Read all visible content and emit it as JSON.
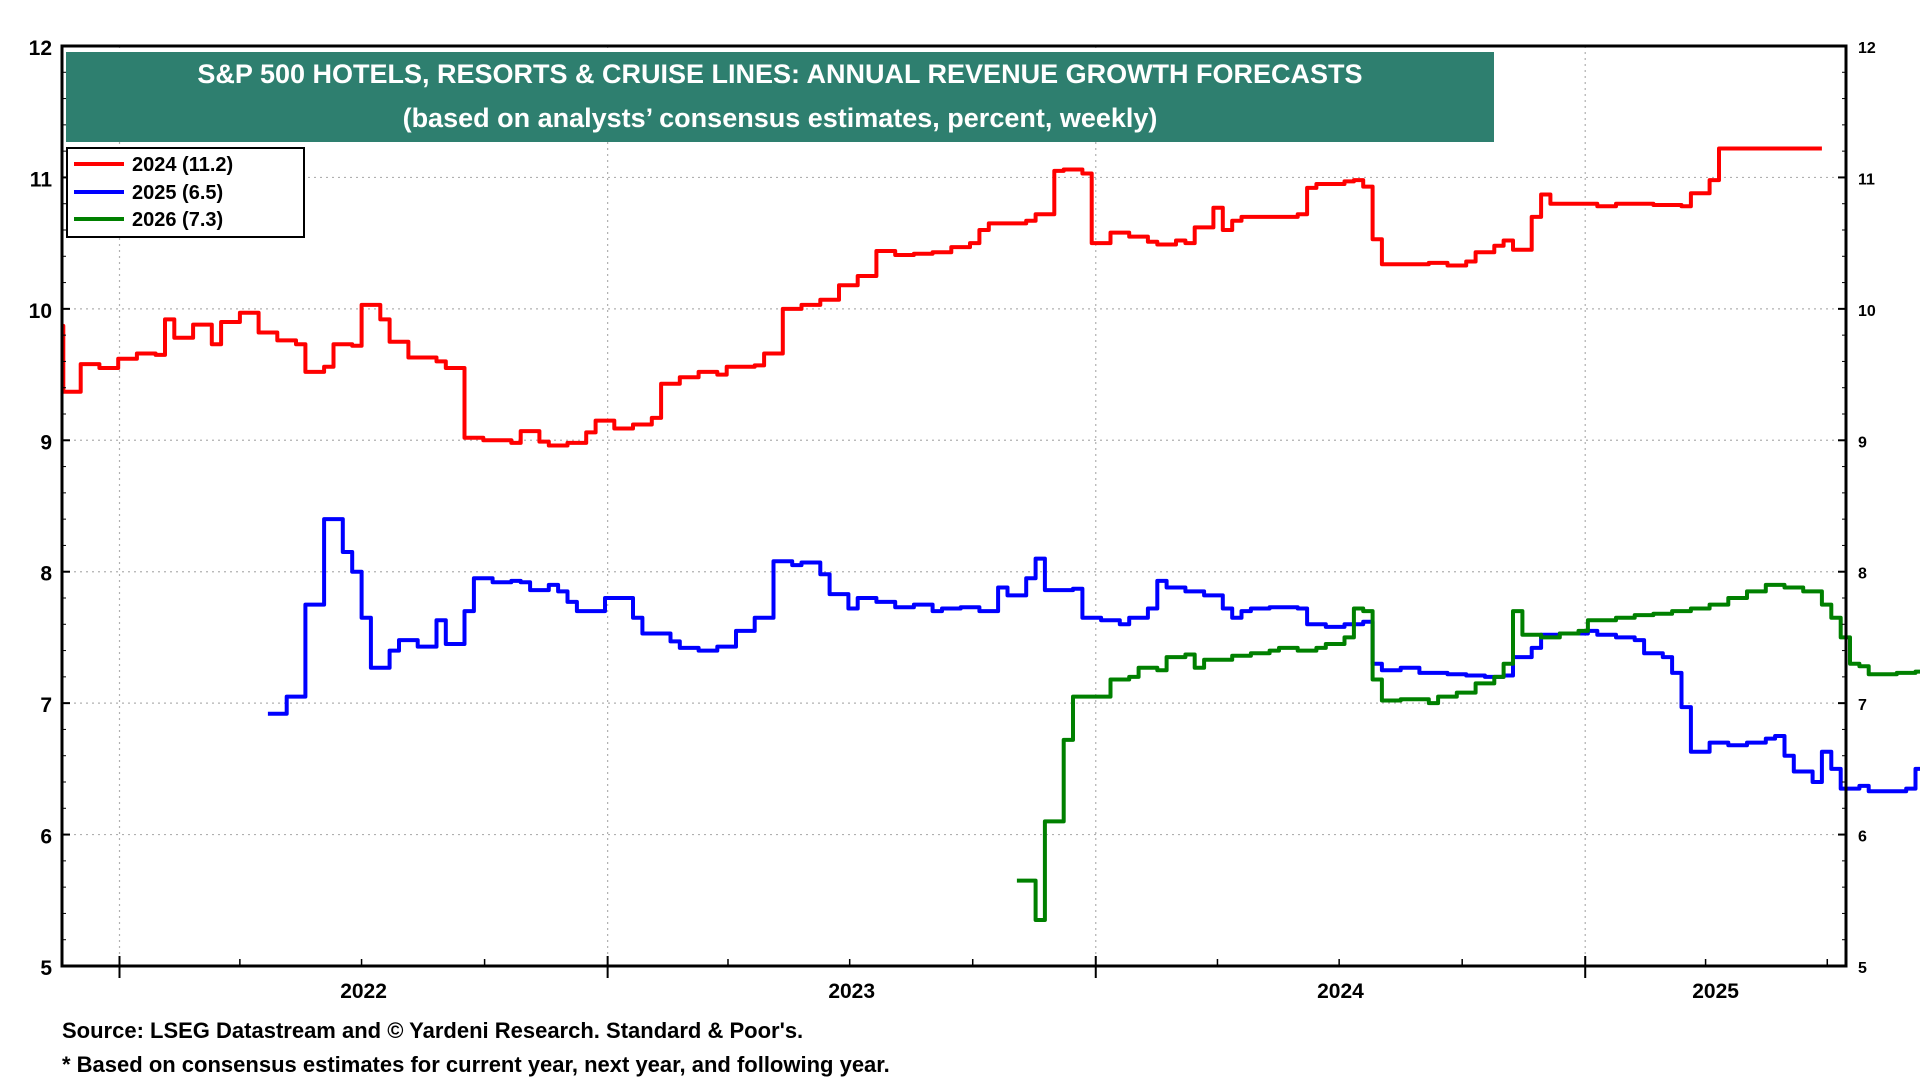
{
  "chart_data": {
    "type": "line",
    "title": "S&P 500 HOTELS, RESORTS & CRUISE LINES: ANNUAL REVENUE GROWTH FORECASTS",
    "subtitle": "(based on analysts’ consensus estimates, percent, weekly)",
    "xlabel": "",
    "ylabel": "",
    "ylim": [
      5,
      12
    ],
    "yticks": [
      "5",
      "6",
      "7",
      "8",
      "9",
      "10",
      "11",
      "12"
    ],
    "x_year_labels": [
      "2022",
      "2023",
      "2024",
      "2025"
    ],
    "xlim": [
      "2021-11-19",
      "2025-07-15"
    ],
    "grid": true,
    "legend_position": "top-left",
    "title_box_color": "#2e7f6f",
    "series": [
      {
        "name": "2024 (11.2)",
        "color": "#ff0000",
        "points": [
          [
            "2021-11-19",
            9.87
          ],
          [
            "2021-11-20",
            9.37
          ],
          [
            "2021-12-01",
            9.37
          ],
          [
            "2021-12-03",
            9.58
          ],
          [
            "2021-12-17",
            9.55
          ],
          [
            "2021-12-31",
            9.62
          ],
          [
            "2022-01-14",
            9.66
          ],
          [
            "2022-01-28",
            9.65
          ],
          [
            "2022-02-04",
            9.92
          ],
          [
            "2022-02-11",
            9.78
          ],
          [
            "2022-02-25",
            9.88
          ],
          [
            "2022-03-04",
            9.88
          ],
          [
            "2022-03-11",
            9.73
          ],
          [
            "2022-03-18",
            9.9
          ],
          [
            "2022-04-01",
            9.97
          ],
          [
            "2022-04-15",
            9.82
          ],
          [
            "2022-04-29",
            9.76
          ],
          [
            "2022-05-13",
            9.73
          ],
          [
            "2022-05-20",
            9.52
          ],
          [
            "2022-06-03",
            9.56
          ],
          [
            "2022-06-10",
            9.73
          ],
          [
            "2022-06-24",
            9.72
          ],
          [
            "2022-07-01",
            10.03
          ],
          [
            "2022-07-15",
            9.92
          ],
          [
            "2022-07-22",
            9.75
          ],
          [
            "2022-08-05",
            9.63
          ],
          [
            "2022-08-26",
            9.6
          ],
          [
            "2022-09-02",
            9.55
          ],
          [
            "2022-09-16",
            9.02
          ],
          [
            "2022-09-30",
            9.0
          ],
          [
            "2022-10-14",
            9.0
          ],
          [
            "2022-10-21",
            8.98
          ],
          [
            "2022-10-28",
            9.07
          ],
          [
            "2022-11-11",
            8.99
          ],
          [
            "2022-11-18",
            8.96
          ],
          [
            "2022-12-02",
            8.98
          ],
          [
            "2022-12-16",
            9.06
          ],
          [
            "2022-12-23",
            9.15
          ],
          [
            "2023-01-06",
            9.09
          ],
          [
            "2023-01-20",
            9.12
          ],
          [
            "2023-02-03",
            9.17
          ],
          [
            "2023-02-10",
            9.43
          ],
          [
            "2023-02-24",
            9.48
          ],
          [
            "2023-03-10",
            9.52
          ],
          [
            "2023-03-24",
            9.5
          ],
          [
            "2023-03-31",
            9.56
          ],
          [
            "2023-04-21",
            9.57
          ],
          [
            "2023-04-28",
            9.66
          ],
          [
            "2023-05-12",
            10.0
          ],
          [
            "2023-05-26",
            10.03
          ],
          [
            "2023-06-09",
            10.07
          ],
          [
            "2023-06-23",
            10.18
          ],
          [
            "2023-07-07",
            10.25
          ],
          [
            "2023-07-21",
            10.44
          ],
          [
            "2023-08-04",
            10.41
          ],
          [
            "2023-08-18",
            10.42
          ],
          [
            "2023-09-01",
            10.43
          ],
          [
            "2023-09-15",
            10.47
          ],
          [
            "2023-09-29",
            10.5
          ],
          [
            "2023-10-06",
            10.6
          ],
          [
            "2023-10-13",
            10.65
          ],
          [
            "2023-11-10",
            10.67
          ],
          [
            "2023-11-17",
            10.72
          ],
          [
            "2023-12-01",
            11.05
          ],
          [
            "2023-12-08",
            11.06
          ],
          [
            "2023-12-22",
            11.03
          ],
          [
            "2023-12-29",
            10.5
          ],
          [
            "2024-01-05",
            10.5
          ],
          [
            "2024-01-12",
            10.58
          ],
          [
            "2024-01-26",
            10.55
          ],
          [
            "2024-02-09",
            10.51
          ],
          [
            "2024-02-16",
            10.49
          ],
          [
            "2024-03-01",
            10.52
          ],
          [
            "2024-03-08",
            10.5
          ],
          [
            "2024-03-15",
            10.62
          ],
          [
            "2024-03-29",
            10.77
          ],
          [
            "2024-04-05",
            10.6
          ],
          [
            "2024-04-12",
            10.67
          ],
          [
            "2024-04-19",
            10.7
          ],
          [
            "2024-04-26",
            10.7
          ],
          [
            "2024-05-31",
            10.72
          ],
          [
            "2024-06-07",
            10.92
          ],
          [
            "2024-06-14",
            10.95
          ],
          [
            "2024-07-05",
            10.97
          ],
          [
            "2024-07-12",
            10.98
          ],
          [
            "2024-07-19",
            10.93
          ],
          [
            "2024-07-26",
            10.53
          ],
          [
            "2024-08-02",
            10.34
          ],
          [
            "2024-08-16",
            10.34
          ],
          [
            "2024-09-06",
            10.35
          ],
          [
            "2024-09-20",
            10.33
          ],
          [
            "2024-10-04",
            10.36
          ],
          [
            "2024-10-11",
            10.43
          ],
          [
            "2024-10-25",
            10.48
          ],
          [
            "2024-11-01",
            10.52
          ],
          [
            "2024-11-08",
            10.45
          ],
          [
            "2024-11-22",
            10.7
          ],
          [
            "2024-11-29",
            10.87
          ],
          [
            "2024-12-06",
            10.8
          ],
          [
            "2025-01-10",
            10.78
          ],
          [
            "2025-01-24",
            10.8
          ],
          [
            "2025-02-21",
            10.79
          ],
          [
            "2025-03-14",
            10.78
          ],
          [
            "2025-03-21",
            10.88
          ],
          [
            "2025-04-04",
            10.98
          ],
          [
            "2025-04-11",
            11.22
          ],
          [
            "2025-06-27",
            11.22
          ]
        ]
      },
      {
        "name": "2025 (6.5)",
        "color": "#0000ff",
        "points": [
          [
            "2022-04-22",
            6.92
          ],
          [
            "2022-05-06",
            7.05
          ],
          [
            "2022-05-20",
            7.75
          ],
          [
            "2022-06-03",
            8.4
          ],
          [
            "2022-06-17",
            8.15
          ],
          [
            "2022-06-24",
            8.0
          ],
          [
            "2022-07-01",
            7.65
          ],
          [
            "2022-07-08",
            7.27
          ],
          [
            "2022-07-22",
            7.4
          ],
          [
            "2022-07-29",
            7.48
          ],
          [
            "2022-08-12",
            7.43
          ],
          [
            "2022-08-26",
            7.63
          ],
          [
            "2022-09-02",
            7.45
          ],
          [
            "2022-09-16",
            7.7
          ],
          [
            "2022-09-23",
            7.95
          ],
          [
            "2022-10-07",
            7.92
          ],
          [
            "2022-10-21",
            7.93
          ],
          [
            "2022-10-28",
            7.92
          ],
          [
            "2022-11-04",
            7.86
          ],
          [
            "2022-11-18",
            7.9
          ],
          [
            "2022-11-25",
            7.85
          ],
          [
            "2022-12-02",
            7.77
          ],
          [
            "2022-12-09",
            7.7
          ],
          [
            "2022-12-30",
            7.8
          ],
          [
            "2023-01-20",
            7.65
          ],
          [
            "2023-01-27",
            7.53
          ],
          [
            "2023-02-17",
            7.47
          ],
          [
            "2023-02-24",
            7.42
          ],
          [
            "2023-03-10",
            7.4
          ],
          [
            "2023-03-24",
            7.43
          ],
          [
            "2023-04-07",
            7.55
          ],
          [
            "2023-04-21",
            7.65
          ],
          [
            "2023-05-05",
            8.08
          ],
          [
            "2023-05-19",
            8.05
          ],
          [
            "2023-05-26",
            8.07
          ],
          [
            "2023-06-09",
            7.98
          ],
          [
            "2023-06-16",
            7.83
          ],
          [
            "2023-06-30",
            7.72
          ],
          [
            "2023-07-07",
            7.8
          ],
          [
            "2023-07-21",
            7.77
          ],
          [
            "2023-08-04",
            7.73
          ],
          [
            "2023-08-18",
            7.75
          ],
          [
            "2023-09-01",
            7.7
          ],
          [
            "2023-09-08",
            7.72
          ],
          [
            "2023-09-22",
            7.73
          ],
          [
            "2023-10-06",
            7.7
          ],
          [
            "2023-10-20",
            7.88
          ],
          [
            "2023-10-27",
            7.82
          ],
          [
            "2023-11-10",
            7.95
          ],
          [
            "2023-11-17",
            8.1
          ],
          [
            "2023-11-24",
            7.86
          ],
          [
            "2023-12-15",
            7.87
          ],
          [
            "2023-12-22",
            7.65
          ],
          [
            "2024-01-05",
            7.63
          ],
          [
            "2024-01-19",
            7.6
          ],
          [
            "2024-01-26",
            7.65
          ],
          [
            "2024-02-09",
            7.72
          ],
          [
            "2024-02-16",
            7.93
          ],
          [
            "2024-02-23",
            7.88
          ],
          [
            "2024-03-08",
            7.85
          ],
          [
            "2024-03-22",
            7.82
          ],
          [
            "2024-04-05",
            7.72
          ],
          [
            "2024-04-12",
            7.65
          ],
          [
            "2024-04-19",
            7.7
          ],
          [
            "2024-04-26",
            7.72
          ],
          [
            "2024-05-10",
            7.73
          ],
          [
            "2024-05-31",
            7.72
          ],
          [
            "2024-06-07",
            7.6
          ],
          [
            "2024-06-21",
            7.58
          ],
          [
            "2024-07-05",
            7.6
          ],
          [
            "2024-07-19",
            7.62
          ],
          [
            "2024-07-26",
            7.3
          ],
          [
            "2024-08-02",
            7.25
          ],
          [
            "2024-08-16",
            7.27
          ],
          [
            "2024-08-30",
            7.23
          ],
          [
            "2024-09-20",
            7.22
          ],
          [
            "2024-10-04",
            7.21
          ],
          [
            "2024-10-18",
            7.2
          ],
          [
            "2024-11-01",
            7.21
          ],
          [
            "2024-11-08",
            7.35
          ],
          [
            "2024-11-22",
            7.42
          ],
          [
            "2024-11-29",
            7.52
          ],
          [
            "2024-12-13",
            7.53
          ],
          [
            "2025-01-03",
            7.55
          ],
          [
            "2025-01-10",
            7.52
          ],
          [
            "2025-01-24",
            7.5
          ],
          [
            "2025-02-07",
            7.48
          ],
          [
            "2025-02-14",
            7.38
          ],
          [
            "2025-02-28",
            7.35
          ],
          [
            "2025-03-07",
            7.23
          ],
          [
            "2025-03-14",
            6.97
          ],
          [
            "2025-03-21",
            6.63
          ],
          [
            "2025-04-04",
            6.7
          ],
          [
            "2025-04-18",
            6.68
          ],
          [
            "2025-05-02",
            6.7
          ],
          [
            "2025-05-16",
            6.73
          ],
          [
            "2025-05-23",
            6.75
          ],
          [
            "2025-05-30",
            6.6
          ],
          [
            "2025-06-06",
            6.48
          ],
          [
            "2025-06-20",
            6.4
          ],
          [
            "2025-06-27",
            6.63
          ],
          [
            "2025-07-04",
            6.5
          ],
          [
            "2025-07-11",
            6.35
          ],
          [
            "2025-07-25",
            6.37
          ],
          [
            "2025-08-01",
            6.33
          ],
          [
            "2025-08-29",
            6.35
          ],
          [
            "2025-09-05",
            6.5
          ],
          [
            "2025-09-19",
            6.5
          ]
        ]
      },
      {
        "name": "2026 (7.3)",
        "color": "#008000",
        "points": [
          [
            "2023-11-03",
            5.65
          ],
          [
            "2023-11-10",
            5.65
          ],
          [
            "2023-11-17",
            5.35
          ],
          [
            "2023-11-24",
            6.1
          ],
          [
            "2023-12-08",
            6.72
          ],
          [
            "2023-12-15",
            7.05
          ],
          [
            "2023-12-29",
            7.05
          ],
          [
            "2024-01-12",
            7.18
          ],
          [
            "2024-01-26",
            7.2
          ],
          [
            "2024-02-02",
            7.27
          ],
          [
            "2024-02-16",
            7.25
          ],
          [
            "2024-02-23",
            7.35
          ],
          [
            "2024-03-08",
            7.37
          ],
          [
            "2024-03-15",
            7.27
          ],
          [
            "2024-03-22",
            7.33
          ],
          [
            "2024-04-12",
            7.36
          ],
          [
            "2024-04-26",
            7.38
          ],
          [
            "2024-05-10",
            7.4
          ],
          [
            "2024-05-17",
            7.42
          ],
          [
            "2024-05-31",
            7.4
          ],
          [
            "2024-06-14",
            7.42
          ],
          [
            "2024-06-21",
            7.45
          ],
          [
            "2024-07-05",
            7.5
          ],
          [
            "2024-07-12",
            7.72
          ],
          [
            "2024-07-19",
            7.7
          ],
          [
            "2024-07-26",
            7.18
          ],
          [
            "2024-08-02",
            7.02
          ],
          [
            "2024-08-16",
            7.03
          ],
          [
            "2024-08-30",
            7.03
          ],
          [
            "2024-09-06",
            7.0
          ],
          [
            "2024-09-13",
            7.05
          ],
          [
            "2024-09-27",
            7.08
          ],
          [
            "2024-10-11",
            7.15
          ],
          [
            "2024-10-25",
            7.2
          ],
          [
            "2024-11-01",
            7.3
          ],
          [
            "2024-11-08",
            7.7
          ],
          [
            "2024-11-15",
            7.52
          ],
          [
            "2024-11-29",
            7.5
          ],
          [
            "2024-12-13",
            7.53
          ],
          [
            "2024-12-27",
            7.55
          ],
          [
            "2025-01-03",
            7.63
          ],
          [
            "2025-01-24",
            7.65
          ],
          [
            "2025-02-07",
            7.67
          ],
          [
            "2025-02-21",
            7.68
          ],
          [
            "2025-03-07",
            7.7
          ],
          [
            "2025-03-21",
            7.72
          ],
          [
            "2025-04-04",
            7.75
          ],
          [
            "2025-04-18",
            7.8
          ],
          [
            "2025-05-02",
            7.85
          ],
          [
            "2025-05-16",
            7.9
          ],
          [
            "2025-05-30",
            7.88
          ],
          [
            "2025-06-13",
            7.85
          ],
          [
            "2025-06-27",
            7.75
          ],
          [
            "2025-07-04",
            7.65
          ],
          [
            "2025-07-11",
            7.5
          ],
          [
            "2025-07-18",
            7.3
          ],
          [
            "2025-07-25",
            7.28
          ],
          [
            "2025-08-01",
            7.22
          ],
          [
            "2025-08-22",
            7.23
          ],
          [
            "2025-09-05",
            7.24
          ],
          [
            "2025-09-19",
            7.25
          ]
        ]
      }
    ],
    "source_note": "Source: LSEG Datastream and © Yardeni Research. Standard & Poor's.",
    "footnote": "* Based on consensus estimates for current year, next year, and following year."
  }
}
